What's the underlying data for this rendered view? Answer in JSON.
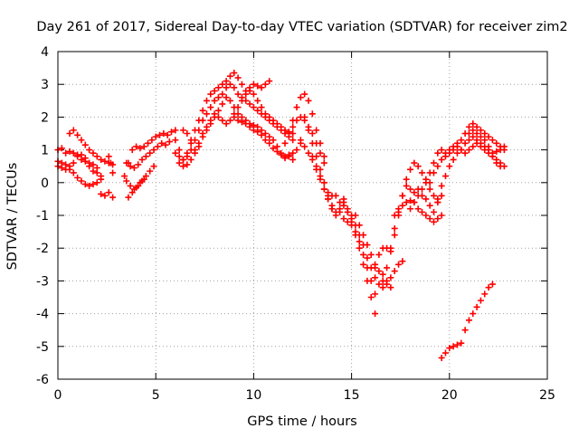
{
  "chart_data": {
    "type": "scatter",
    "title": "Day 261 of 2017, Sidereal Day-to-day VTEC variation (SDTVAR) for receiver zim2",
    "xlabel": "GPS time / hours",
    "ylabel": "SDTVAR / TECUs",
    "xlim": [
      0,
      25
    ],
    "ylim": [
      -6,
      4
    ],
    "xticks": [
      0,
      5,
      10,
      15,
      20,
      25
    ],
    "yticks": [
      -6,
      -5,
      -4,
      -3,
      -2,
      -1,
      0,
      1,
      2,
      3,
      4
    ],
    "xtick_labels": [
      "0",
      "5",
      "10",
      "15",
      "20",
      "25"
    ],
    "ytick_labels": [
      "-6",
      "-5",
      "-4",
      "-3",
      "-2",
      "-1",
      "0",
      "1",
      "2",
      "3",
      "4"
    ],
    "grid": true,
    "marker": "plus",
    "color": "#ff0000",
    "series": [
      {
        "name": "s1",
        "x": [
          0.0,
          0.2,
          0.4,
          0.6,
          0.8,
          1.0,
          1.2,
          1.4,
          1.6,
          1.8,
          2.0,
          2.2
        ],
        "y": [
          1.0,
          1.05,
          0.9,
          0.95,
          0.9,
          0.85,
          0.7,
          0.65,
          0.5,
          0.35,
          0.3,
          0.2
        ]
      },
      {
        "name": "s2",
        "x": [
          0.0,
          0.2,
          0.4,
          0.6,
          0.8,
          1.0,
          1.2,
          1.4,
          1.6,
          1.8,
          2.0
        ],
        "y": [
          0.5,
          0.45,
          0.4,
          0.5,
          0.6,
          0.8,
          0.85,
          0.75,
          0.6,
          0.55,
          0.45
        ]
      },
      {
        "name": "s3",
        "x": [
          0.0,
          0.2,
          0.4,
          0.6,
          0.8,
          1.0,
          1.2,
          1.4,
          1.6,
          1.8,
          2.0,
          2.2
        ],
        "y": [
          0.65,
          0.6,
          0.55,
          0.4,
          0.3,
          0.15,
          0.05,
          -0.05,
          -0.1,
          -0.05,
          0.0,
          0.1
        ]
      },
      {
        "name": "s4",
        "x": [
          0.6,
          0.8,
          1.0,
          1.2,
          1.4,
          1.6,
          1.8,
          2.0,
          2.2,
          2.4,
          2.6,
          2.8
        ],
        "y": [
          1.5,
          1.6,
          1.45,
          1.3,
          1.15,
          1.0,
          0.9,
          0.8,
          0.7,
          0.65,
          0.6,
          0.55
        ]
      },
      {
        "name": "s5",
        "x": [
          2.2,
          2.4,
          2.6,
          2.8
        ],
        "y": [
          -0.35,
          -0.4,
          -0.3,
          -0.45
        ]
      },
      {
        "name": "s6",
        "x": [
          2.6,
          2.7,
          2.8
        ],
        "y": [
          0.8,
          0.6,
          0.3
        ]
      },
      {
        "name": "s7",
        "x": [
          3.4,
          3.6,
          3.8,
          4.0,
          4.2,
          4.4,
          4.6,
          4.8,
          5.0,
          5.2,
          5.4,
          5.6,
          5.8,
          6.0
        ],
        "y": [
          0.2,
          0.6,
          1.0,
          1.1,
          1.05,
          1.1,
          1.2,
          1.3,
          1.4,
          1.45,
          1.5,
          1.45,
          1.55,
          1.6
        ]
      },
      {
        "name": "s8",
        "x": [
          3.5,
          3.7,
          3.9,
          4.1,
          4.3,
          4.5,
          4.7,
          4.9,
          5.1,
          5.3,
          5.5,
          5.7
        ],
        "y": [
          0.6,
          0.5,
          0.45,
          0.55,
          0.7,
          0.8,
          0.9,
          1.0,
          1.1,
          1.2,
          1.15,
          1.25
        ]
      },
      {
        "name": "s9",
        "x": [
          3.5,
          3.7,
          3.9,
          4.1,
          4.3,
          4.5,
          4.7,
          4.9
        ],
        "y": [
          0.05,
          -0.1,
          -0.2,
          -0.1,
          0.05,
          0.2,
          0.35,
          0.5
        ]
      },
      {
        "name": "s10",
        "x": [
          3.6,
          3.8,
          4.0,
          4.2,
          4.4
        ],
        "y": [
          -0.45,
          -0.3,
          -0.15,
          0.0,
          0.1
        ]
      },
      {
        "name": "s11",
        "x": [
          6.0,
          6.2,
          6.4,
          6.6,
          6.8,
          7.0,
          7.2,
          7.4,
          7.6,
          7.8,
          8.0,
          8.2,
          8.4,
          8.6,
          8.8,
          9.0,
          9.2,
          9.4,
          9.6,
          9.8,
          10.0,
          10.2,
          10.4,
          10.6,
          10.8
        ],
        "y": [
          1.3,
          1.0,
          0.7,
          0.9,
          1.2,
          1.6,
          1.9,
          2.2,
          2.5,
          2.7,
          2.8,
          2.9,
          3.0,
          3.1,
          3.25,
          3.35,
          3.2,
          3.0,
          2.8,
          2.9,
          3.0,
          2.95,
          2.9,
          3.0,
          3.1
        ]
      },
      {
        "name": "s12",
        "x": [
          6.0,
          6.2,
          6.4,
          6.6,
          6.8,
          7.0,
          7.2,
          7.4,
          7.6,
          7.8,
          8.0,
          8.2,
          8.4,
          8.6,
          8.8,
          9.0,
          9.2,
          9.4,
          9.6,
          9.8,
          10.0,
          10.2,
          10.4,
          10.6,
          10.8,
          11.0,
          11.2,
          11.4,
          11.6,
          11.8,
          12.0
        ],
        "y": [
          0.9,
          0.8,
          0.7,
          0.8,
          1.0,
          1.3,
          1.6,
          1.9,
          2.1,
          2.3,
          2.5,
          2.6,
          2.7,
          2.9,
          3.0,
          2.9,
          2.7,
          2.6,
          2.5,
          2.4,
          2.3,
          2.2,
          2.1,
          2.0,
          1.9,
          1.8,
          1.7,
          1.6,
          1.5,
          1.4,
          1.3
        ]
      },
      {
        "name": "s13",
        "x": [
          6.2,
          6.4,
          6.6,
          6.8,
          7.0,
          7.2,
          7.4,
          7.6,
          7.8,
          8.0,
          8.2,
          8.4,
          8.6,
          8.8,
          9.0,
          9.2,
          9.4,
          9.6,
          9.8,
          10.0,
          10.2,
          10.4,
          10.6,
          10.8,
          11.0,
          11.2,
          11.4,
          11.6,
          11.8,
          12.0,
          12.2,
          12.4
        ],
        "y": [
          0.6,
          0.5,
          0.55,
          0.7,
          0.9,
          1.1,
          1.4,
          1.6,
          1.8,
          2.0,
          2.2,
          2.4,
          2.6,
          2.5,
          2.3,
          2.1,
          2.0,
          1.9,
          1.8,
          1.75,
          1.7,
          1.6,
          1.5,
          1.4,
          1.3,
          1.1,
          0.9,
          0.8,
          0.85,
          0.9,
          1.0,
          1.2
        ]
      },
      {
        "name": "s14",
        "x": [
          6.4,
          6.6,
          6.8,
          7.0,
          7.2,
          7.4,
          7.6,
          7.8,
          8.0,
          8.2,
          8.4,
          8.6,
          8.8,
          9.0,
          9.2,
          9.4,
          9.6,
          9.8,
          10.0,
          10.2,
          10.4,
          10.6,
          10.8,
          11.0,
          11.2,
          11.4,
          11.6,
          11.8,
          12.0
        ],
        "y": [
          1.6,
          1.5,
          1.3,
          1.0,
          1.2,
          1.5,
          1.7,
          1.9,
          2.1,
          2.0,
          1.9,
          1.8,
          1.9,
          2.0,
          1.9,
          1.85,
          1.8,
          1.7,
          1.6,
          1.55,
          1.45,
          1.3,
          1.2,
          1.05,
          0.95,
          0.85,
          0.75,
          0.8,
          0.7
        ]
      },
      {
        "name": "s15",
        "x": [
          9.0,
          9.2,
          9.4,
          9.6,
          9.8,
          10.0,
          10.2,
          10.4,
          10.6,
          10.8,
          11.0,
          11.2,
          11.4,
          11.6,
          11.8,
          12.0
        ],
        "y": [
          2.1,
          2.3,
          2.5,
          2.7,
          2.8,
          2.7,
          2.5,
          2.3,
          2.1,
          2.0,
          1.9,
          1.8,
          1.7,
          1.6,
          1.55,
          1.5
        ]
      },
      {
        "name": "s16",
        "x": [
          11.6,
          11.8,
          12.0,
          12.2,
          12.4,
          12.6,
          12.8,
          13.0,
          13.2,
          13.4,
          13.6
        ],
        "y": [
          1.2,
          1.5,
          1.9,
          2.3,
          2.6,
          2.7,
          2.5,
          2.1,
          1.6,
          1.2,
          0.8
        ]
      },
      {
        "name": "s17",
        "x": [
          12.0,
          12.2,
          12.4,
          12.6,
          12.8,
          13.0,
          13.2,
          13.4,
          13.6
        ],
        "y": [
          1.7,
          1.9,
          2.0,
          1.9,
          1.7,
          1.5,
          1.2,
          0.9,
          0.6
        ]
      },
      {
        "name": "s18",
        "x": [
          12.4,
          12.6,
          12.8,
          13.0,
          13.2,
          13.4,
          13.6,
          13.8,
          14.0
        ],
        "y": [
          1.3,
          1.1,
          0.9,
          0.7,
          0.5,
          0.2,
          0.0,
          -0.3,
          -0.4
        ]
      },
      {
        "name": "s19",
        "x": [
          12.6,
          12.8,
          13.0,
          13.2,
          13.4,
          13.6,
          13.8,
          14.0
        ],
        "y": [
          2.0,
          1.6,
          1.2,
          0.8,
          0.4,
          0.0,
          -0.4,
          -0.8
        ]
      },
      {
        "name": "s20",
        "x": [
          13.0,
          13.2,
          13.4,
          13.6,
          13.8,
          14.0,
          14.2,
          14.4,
          14.6,
          14.8,
          15.0
        ],
        "y": [
          0.8,
          0.4,
          0.1,
          -0.2,
          -0.5,
          -0.7,
          -0.9,
          -0.8,
          -0.6,
          -0.8,
          -1.0
        ]
      },
      {
        "name": "s21",
        "x": [
          13.6,
          13.8,
          14.0,
          14.2,
          14.4,
          14.6,
          14.8,
          15.0,
          15.2,
          15.4,
          15.6,
          15.8,
          16.0,
          16.2
        ],
        "y": [
          -0.2,
          -0.5,
          -0.8,
          -1.0,
          -0.9,
          -1.1,
          -1.2,
          -1.3,
          -1.5,
          -1.8,
          -2.2,
          -2.6,
          -3.0,
          -3.4
        ]
      },
      {
        "name": "s22",
        "x": [
          14.2,
          14.4,
          14.6,
          14.8,
          15.0,
          15.2,
          15.4,
          15.6,
          15.8,
          16.0,
          16.2
        ],
        "y": [
          -0.4,
          -0.6,
          -0.5,
          -0.9,
          -1.2,
          -1.6,
          -2.0,
          -2.5,
          -3.0,
          -3.5,
          -4.0
        ]
      },
      {
        "name": "s23",
        "x": [
          14.6,
          14.8,
          15.0,
          15.2,
          15.4,
          15.6,
          15.8,
          16.0,
          16.2,
          16.4,
          16.6,
          16.8,
          17.0,
          17.2,
          17.4,
          17.6
        ],
        "y": [
          -0.7,
          -0.9,
          -1.1,
          -1.3,
          -1.6,
          -1.9,
          -2.3,
          -2.6,
          -2.9,
          -3.1,
          -3.2,
          -3.1,
          -2.9,
          -2.7,
          -2.5,
          -2.4
        ]
      },
      {
        "name": "s24",
        "x": [
          15.2,
          15.4,
          15.6,
          15.8,
          16.0,
          16.2,
          16.4,
          16.6,
          16.8,
          17.0
        ],
        "y": [
          -1.0,
          -1.3,
          -1.6,
          -1.9,
          -2.2,
          -2.5,
          -2.7,
          -2.8,
          -3.0,
          -3.2
        ]
      },
      {
        "name": "s25",
        "x": [
          16.2,
          16.4,
          16.6,
          16.8,
          17.0,
          17.2,
          17.4,
          17.6,
          17.8,
          18.0,
          18.2,
          18.4,
          18.6,
          18.8,
          19.0,
          19.2,
          19.4,
          19.6
        ],
        "y": [
          -2.6,
          -2.2,
          -2.0,
          -2.0,
          -2.1,
          -1.6,
          -1.0,
          -0.4,
          -0.1,
          -0.2,
          -0.3,
          -0.2,
          -0.4,
          -0.5,
          -0.7,
          -0.9,
          -0.6,
          -0.4
        ]
      },
      {
        "name": "s26",
        "x": [
          16.6,
          16.8,
          17.0,
          17.2,
          17.4,
          17.6,
          17.8,
          18.0,
          18.2,
          18.4,
          18.6,
          18.8,
          19.0,
          19.2,
          19.4
        ],
        "y": [
          -3.0,
          -2.6,
          -2.0,
          -1.4,
          -0.9,
          -0.4,
          0.1,
          0.4,
          0.6,
          0.5,
          0.3,
          0.1,
          -0.2,
          -0.4,
          -0.6
        ]
      },
      {
        "name": "s27",
        "x": [
          17.2,
          17.4,
          17.6,
          17.8,
          18.0,
          18.2,
          18.4,
          18.6,
          18.8,
          19.0,
          19.2,
          19.4,
          19.6
        ],
        "y": [
          -1.0,
          -0.8,
          -0.7,
          -0.6,
          -0.55,
          -0.6,
          -0.8,
          -0.9,
          -1.0,
          -1.1,
          -1.2,
          -1.1,
          -1.0
        ]
      },
      {
        "name": "s28",
        "x": [
          18.0,
          18.2,
          18.4,
          18.6,
          18.8,
          19.0,
          19.2,
          19.4,
          19.6,
          19.8,
          20.0,
          20.2,
          20.4,
          20.6,
          20.8,
          21.0,
          21.2,
          21.4,
          21.6,
          21.8,
          22.0,
          22.2,
          22.4,
          22.6,
          22.8
        ],
        "y": [
          -0.8,
          -0.6,
          -0.4,
          -0.2,
          0.0,
          0.3,
          0.6,
          0.9,
          1.0,
          0.9,
          1.0,
          1.1,
          1.2,
          1.3,
          1.5,
          1.7,
          1.8,
          1.7,
          1.6,
          1.5,
          1.4,
          1.3,
          1.2,
          1.1,
          1.0
        ]
      },
      {
        "name": "s29",
        "x": [
          19.0,
          19.2,
          19.4,
          19.6,
          19.8,
          20.0,
          20.2,
          20.4,
          20.6,
          20.8,
          21.0,
          21.2,
          21.4,
          21.6,
          21.8,
          22.0,
          22.2,
          22.4,
          22.6,
          22.8
        ],
        "y": [
          0.0,
          0.3,
          0.5,
          0.7,
          0.8,
          0.9,
          1.0,
          1.1,
          1.0,
          0.9,
          1.0,
          1.1,
          1.2,
          1.1,
          1.0,
          0.9,
          0.8,
          0.7,
          0.6,
          0.5
        ]
      },
      {
        "name": "s30",
        "x": [
          19.4,
          19.6,
          19.8,
          20.0,
          20.2,
          20.4,
          20.6,
          20.8,
          21.0,
          21.2,
          21.4,
          21.6,
          21.8,
          22.0,
          22.2,
          22.4,
          22.6,
          22.8
        ],
        "y": [
          -0.5,
          -0.1,
          0.2,
          0.5,
          0.7,
          0.9,
          1.0,
          1.2,
          1.3,
          1.4,
          1.3,
          1.2,
          1.1,
          1.0,
          0.9,
          0.95,
          1.0,
          1.1
        ]
      },
      {
        "name": "s31",
        "x": [
          21.0,
          21.2,
          21.4,
          21.6,
          21.8,
          22.0,
          22.2,
          22.4,
          22.6
        ],
        "y": [
          1.5,
          1.6,
          1.5,
          1.4,
          1.3,
          1.1,
          0.8,
          0.6,
          0.5
        ]
      },
      {
        "name": "s32",
        "x": [
          19.6,
          19.8,
          20.0,
          20.2,
          20.4,
          20.6,
          20.8,
          21.0,
          21.2,
          21.4,
          21.6,
          21.8,
          22.0,
          22.2
        ],
        "y": [
          -5.35,
          -5.2,
          -5.05,
          -5.0,
          -4.95,
          -4.9,
          -4.5,
          -4.2,
          -4.0,
          -3.8,
          -3.6,
          -3.4,
          -3.2,
          -3.1
        ]
      }
    ]
  }
}
